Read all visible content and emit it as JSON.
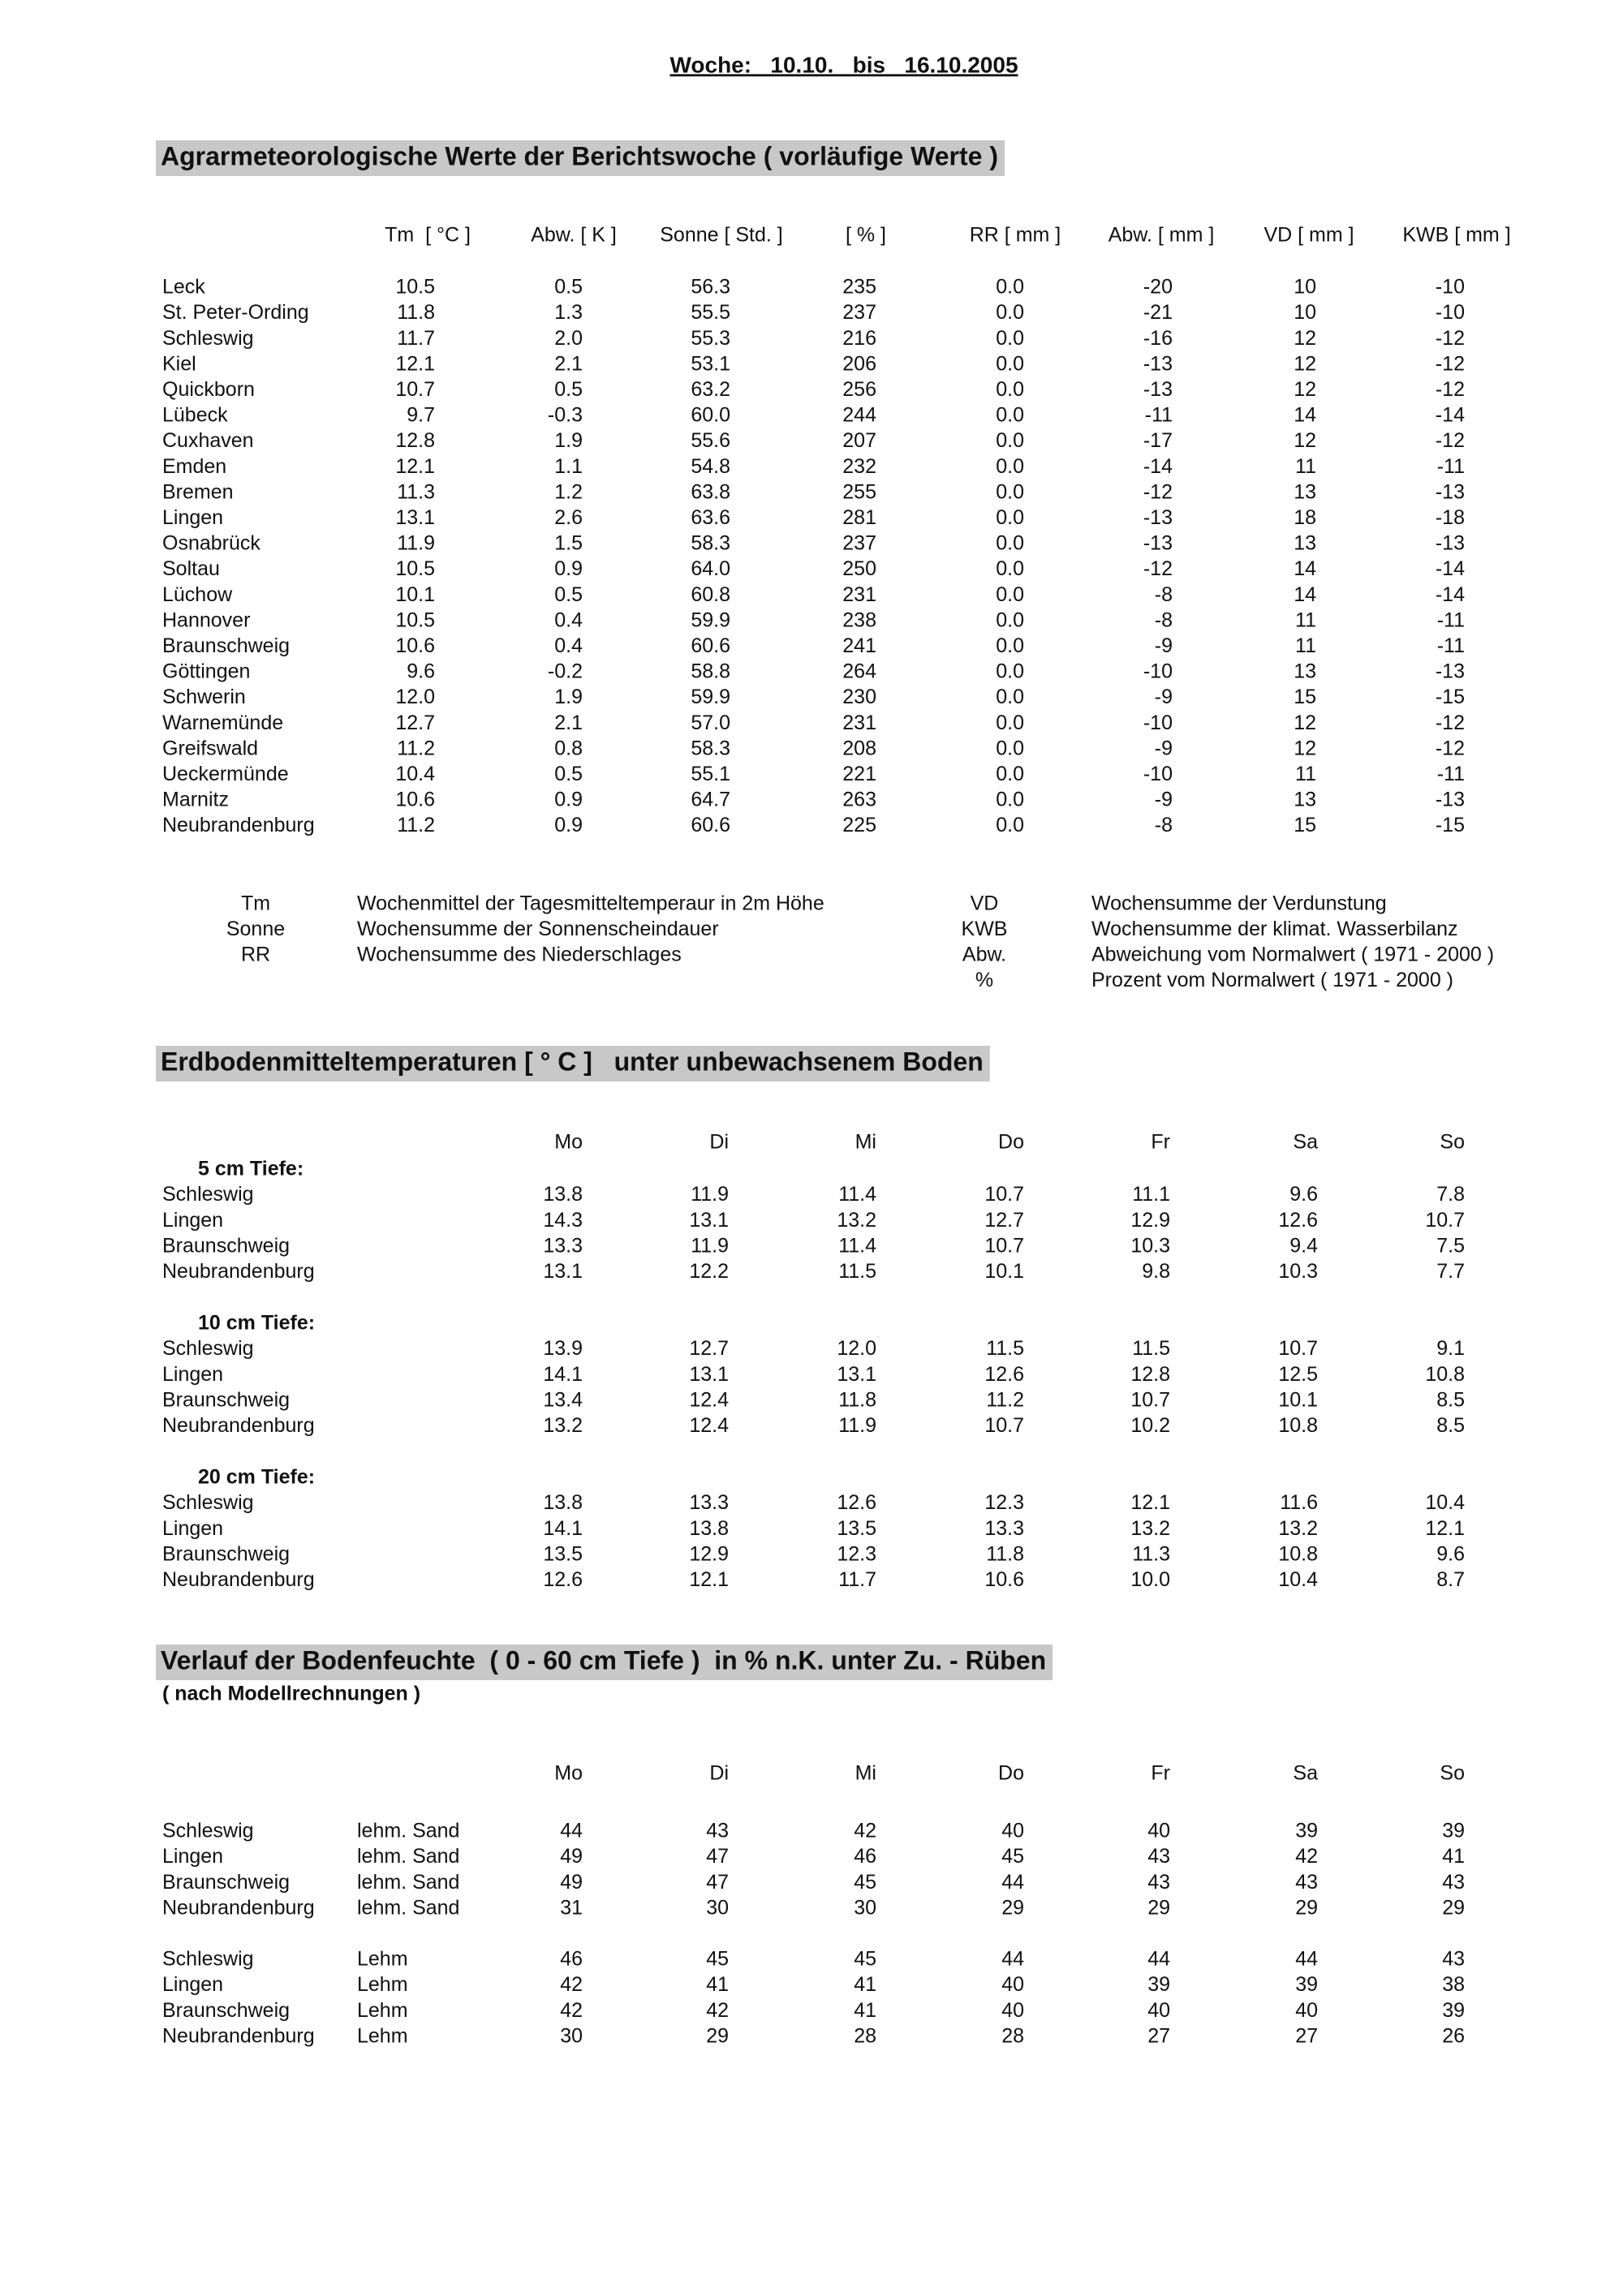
{
  "header": {
    "title": "Woche:   10.10.   bis   16.10.2005"
  },
  "weekly": {
    "heading": "Agrarmeteorologische Werte der Berichtswoche ( vorläufige Werte )",
    "columns": [
      "Tm  [ °C ]",
      "Abw. [ K ]",
      "Sonne [ Std. ]",
      "[ % ]",
      "RR [ mm ]",
      "Abw. [ mm ]",
      "VD [ mm ]",
      "KWB [ mm ]"
    ],
    "rows": [
      [
        "Leck",
        "10.5",
        "0.5",
        "56.3",
        "235",
        "0.0",
        "-20",
        "10",
        "-10"
      ],
      [
        "St. Peter-Ording",
        "11.8",
        "1.3",
        "55.5",
        "237",
        "0.0",
        "-21",
        "10",
        "-10"
      ],
      [
        "Schleswig",
        "11.7",
        "2.0",
        "55.3",
        "216",
        "0.0",
        "-16",
        "12",
        "-12"
      ],
      [
        "Kiel",
        "12.1",
        "2.1",
        "53.1",
        "206",
        "0.0",
        "-13",
        "12",
        "-12"
      ],
      [
        "Quickborn",
        "10.7",
        "0.5",
        "63.2",
        "256",
        "0.0",
        "-13",
        "12",
        "-12"
      ],
      [
        "Lübeck",
        "9.7",
        "-0.3",
        "60.0",
        "244",
        "0.0",
        "-11",
        "14",
        "-14"
      ],
      [
        "Cuxhaven",
        "12.8",
        "1.9",
        "55.6",
        "207",
        "0.0",
        "-17",
        "12",
        "-12"
      ],
      [
        "Emden",
        "12.1",
        "1.1",
        "54.8",
        "232",
        "0.0",
        "-14",
        "11",
        "-11"
      ],
      [
        "Bremen",
        "11.3",
        "1.2",
        "63.8",
        "255",
        "0.0",
        "-12",
        "13",
        "-13"
      ],
      [
        "Lingen",
        "13.1",
        "2.6",
        "63.6",
        "281",
        "0.0",
        "-13",
        "18",
        "-18"
      ],
      [
        "Osnabrück",
        "11.9",
        "1.5",
        "58.3",
        "237",
        "0.0",
        "-13",
        "13",
        "-13"
      ],
      [
        "Soltau",
        "10.5",
        "0.9",
        "64.0",
        "250",
        "0.0",
        "-12",
        "14",
        "-14"
      ],
      [
        "Lüchow",
        "10.1",
        "0.5",
        "60.8",
        "231",
        "0.0",
        "-8",
        "14",
        "-14"
      ],
      [
        "Hannover",
        "10.5",
        "0.4",
        "59.9",
        "238",
        "0.0",
        "-8",
        "11",
        "-11"
      ],
      [
        "Braunschweig",
        "10.6",
        "0.4",
        "60.6",
        "241",
        "0.0",
        "-9",
        "11",
        "-11"
      ],
      [
        "Göttingen",
        "9.6",
        "-0.2",
        "58.8",
        "264",
        "0.0",
        "-10",
        "13",
        "-13"
      ],
      [
        "Schwerin",
        "12.0",
        "1.9",
        "59.9",
        "230",
        "0.0",
        "-9",
        "15",
        "-15"
      ],
      [
        "Warnemünde",
        "12.7",
        "2.1",
        "57.0",
        "231",
        "0.0",
        "-10",
        "12",
        "-12"
      ],
      [
        "Greifswald",
        "11.2",
        "0.8",
        "58.3",
        "208",
        "0.0",
        "-9",
        "12",
        "-12"
      ],
      [
        "Ueckermünde",
        "10.4",
        "0.5",
        "55.1",
        "221",
        "0.0",
        "-10",
        "11",
        "-11"
      ],
      [
        "Marnitz",
        "10.6",
        "0.9",
        "64.7",
        "263",
        "0.0",
        "-9",
        "13",
        "-13"
      ],
      [
        "Neubrandenburg",
        "11.2",
        "0.9",
        "60.6",
        "225",
        "0.0",
        "-8",
        "15",
        "-15"
      ]
    ]
  },
  "legend": {
    "left": [
      [
        "Tm",
        "Wochenmittel der Tagesmitteltemperaur in 2m Höhe"
      ],
      [
        "Sonne",
        "Wochensumme der Sonnenscheindauer"
      ],
      [
        "RR",
        "Wochensumme des Niederschlages"
      ]
    ],
    "right": [
      [
        "VD",
        "Wochensumme der Verdunstung"
      ],
      [
        "KWB",
        "Wochensumme der klimat. Wasserbilanz"
      ],
      [
        "Abw.",
        "Abweichung vom Normalwert ( 1971 - 2000 )"
      ],
      [
        "%",
        "Prozent vom Normalwert ( 1971 - 2000 )"
      ]
    ]
  },
  "soil_temp": {
    "heading": "Erdbodenmitteltemperaturen [ ° C ]   unter unbewachsenem Boden",
    "days": [
      "Mo",
      "Di",
      "Mi",
      "Do",
      "Fr",
      "Sa",
      "So"
    ],
    "groups": [
      {
        "label": "5 cm Tiefe:",
        "rows": [
          [
            "Schleswig",
            "13.8",
            "11.9",
            "11.4",
            "10.7",
            "11.1",
            "9.6",
            "7.8"
          ],
          [
            "Lingen",
            "14.3",
            "13.1",
            "13.2",
            "12.7",
            "12.9",
            "12.6",
            "10.7"
          ],
          [
            "Braunschweig",
            "13.3",
            "11.9",
            "11.4",
            "10.7",
            "10.3",
            "9.4",
            "7.5"
          ],
          [
            "Neubrandenburg",
            "13.1",
            "12.2",
            "11.5",
            "10.1",
            "9.8",
            "10.3",
            "7.7"
          ]
        ]
      },
      {
        "label": "10 cm Tiefe:",
        "rows": [
          [
            "Schleswig",
            "13.9",
            "12.7",
            "12.0",
            "11.5",
            "11.5",
            "10.7",
            "9.1"
          ],
          [
            "Lingen",
            "14.1",
            "13.1",
            "13.1",
            "12.6",
            "12.8",
            "12.5",
            "10.8"
          ],
          [
            "Braunschweig",
            "13.4",
            "12.4",
            "11.8",
            "11.2",
            "10.7",
            "10.1",
            "8.5"
          ],
          [
            "Neubrandenburg",
            "13.2",
            "12.4",
            "11.9",
            "10.7",
            "10.2",
            "10.8",
            "8.5"
          ]
        ]
      },
      {
        "label": "20 cm Tiefe:",
        "rows": [
          [
            "Schleswig",
            "13.8",
            "13.3",
            "12.6",
            "12.3",
            "12.1",
            "11.6",
            "10.4"
          ],
          [
            "Lingen",
            "14.1",
            "13.8",
            "13.5",
            "13.3",
            "13.2",
            "13.2",
            "12.1"
          ],
          [
            "Braunschweig",
            "13.5",
            "12.9",
            "12.3",
            "11.8",
            "11.3",
            "10.8",
            "9.6"
          ],
          [
            "Neubrandenburg",
            "12.6",
            "12.1",
            "11.7",
            "10.6",
            "10.0",
            "10.4",
            "8.7"
          ]
        ]
      }
    ]
  },
  "moisture": {
    "heading": "Verlauf der Bodenfeuchte  ( 0 - 60 cm Tiefe )  in % n.K. unter Zu. - Rüben",
    "subheading": "( nach Modellrechnungen )",
    "days": [
      "Mo",
      "Di",
      "Mi",
      "Do",
      "Fr",
      "Sa",
      "So"
    ],
    "groups": [
      {
        "rows": [
          [
            "Schleswig",
            "lehm. Sand",
            "44",
            "43",
            "42",
            "40",
            "40",
            "39",
            "39"
          ],
          [
            "Lingen",
            "lehm. Sand",
            "49",
            "47",
            "46",
            "45",
            "43",
            "42",
            "41"
          ],
          [
            "Braunschweig",
            "lehm. Sand",
            "49",
            "47",
            "45",
            "44",
            "43",
            "43",
            "43"
          ],
          [
            "Neubrandenburg",
            "lehm. Sand",
            "31",
            "30",
            "30",
            "29",
            "29",
            "29",
            "29"
          ]
        ]
      },
      {
        "rows": [
          [
            "Schleswig",
            "Lehm",
            "46",
            "45",
            "45",
            "44",
            "44",
            "44",
            "43"
          ],
          [
            "Lingen",
            "Lehm",
            "42",
            "41",
            "41",
            "40",
            "39",
            "39",
            "38"
          ],
          [
            "Braunschweig",
            "Lehm",
            "42",
            "42",
            "41",
            "40",
            "40",
            "40",
            "39"
          ],
          [
            "Neubrandenburg",
            "Lehm",
            "30",
            "29",
            "28",
            "28",
            "27",
            "27",
            "26"
          ]
        ]
      }
    ]
  }
}
